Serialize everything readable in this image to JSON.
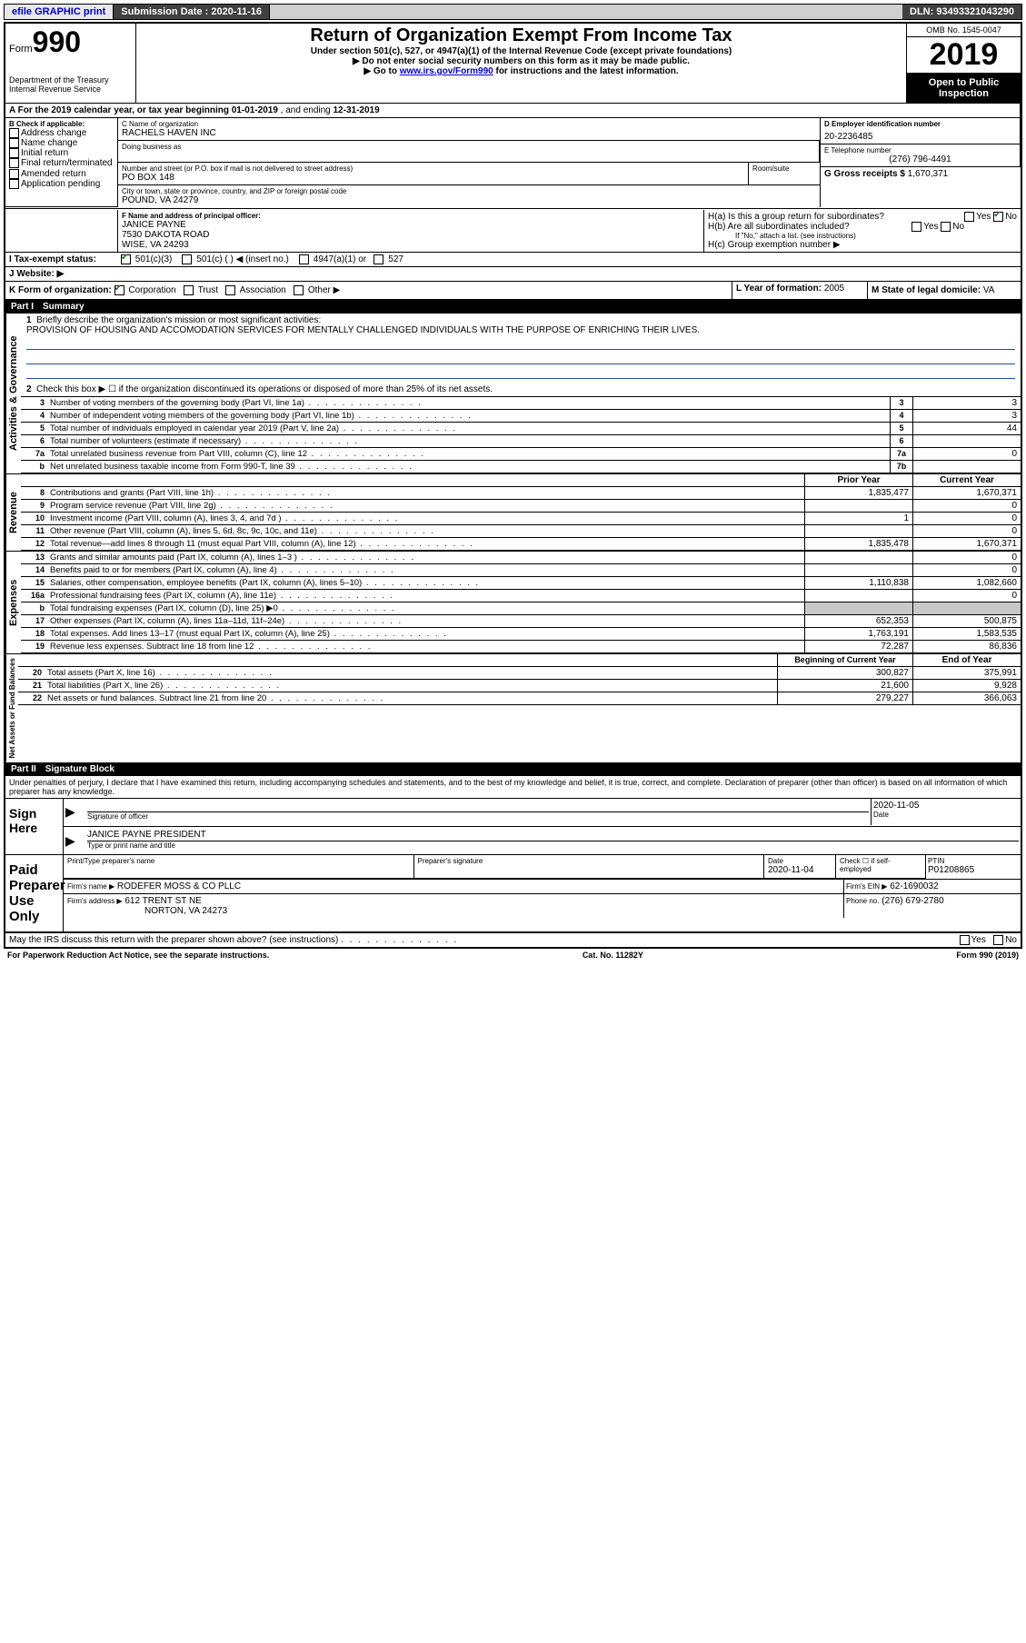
{
  "topbar": {
    "efile": "efile GRAPHIC print",
    "sub_label": "Submission Date :",
    "sub_date": "2020-11-16",
    "dln_label": "DLN:",
    "dln": "93493321043290"
  },
  "header": {
    "form_word": "Form",
    "form_num": "990",
    "dept": "Department of the Treasury\nInternal Revenue Service",
    "title": "Return of Organization Exempt From Income Tax",
    "sub1": "Under section 501(c), 527, or 4947(a)(1) of the Internal Revenue Code (except private foundations)",
    "sub2": "▶ Do not enter social security numbers on this form as it may be made public.",
    "sub3_pre": "▶ Go to ",
    "sub3_link": "www.irs.gov/Form990",
    "sub3_post": " for instructions and the latest information.",
    "omb": "OMB No. 1545-0047",
    "year": "2019",
    "open": "Open to Public Inspection"
  },
  "A": {
    "text": "A For the 2019 calendar year, or tax year beginning ",
    "begin": "01-01-2019",
    "mid": " , and ending ",
    "end": "12-31-2019"
  },
  "B": {
    "label": "B Check if applicable:",
    "opts": [
      "Address change",
      "Name change",
      "Initial return",
      "Final return/terminated",
      "Amended return",
      "Application pending"
    ]
  },
  "C": {
    "name_label": "C Name of organization",
    "name": "RACHELS HAVEN INC",
    "dba_label": "Doing business as",
    "addr_label": "Number and street (or P.O. box if mail is not delivered to street address)",
    "room_label": "Room/suite",
    "addr": "PO BOX 148",
    "city_label": "City or town, state or province, country, and ZIP or foreign postal code",
    "city": "POUND, VA  24279"
  },
  "D": {
    "label": "D Employer identification number",
    "val": "20-2236485"
  },
  "E": {
    "label": "E Telephone number",
    "val": "(276) 796-4491"
  },
  "G": {
    "label": "G Gross receipts $",
    "val": "1,670,371"
  },
  "F": {
    "label": "F Name and address of principal officer:",
    "name": "JANICE PAYNE",
    "addr1": "7530 DAKOTA ROAD",
    "addr2": "WISE, VA  24293"
  },
  "H": {
    "a": "H(a)  Is this a group return for subordinates?",
    "b": "H(b)  Are all subordinates included?",
    "b_note": "If \"No,\" attach a list. (see instructions)",
    "c": "H(c)  Group exemption number ▶",
    "yes": "Yes",
    "no": "No"
  },
  "I": {
    "label": "I   Tax-exempt status:",
    "opts": [
      "501(c)(3)",
      "501(c) (  ) ◀ (insert no.)",
      "4947(a)(1) or",
      "527"
    ]
  },
  "J": {
    "label": "J   Website: ▶"
  },
  "K": {
    "label": "K Form of organization:",
    "opts": [
      "Corporation",
      "Trust",
      "Association",
      "Other ▶"
    ]
  },
  "L": {
    "label": "L Year of formation:",
    "val": "2005"
  },
  "M": {
    "label": "M State of legal domicile:",
    "val": "VA"
  },
  "part1": {
    "bar_part": "Part I",
    "bar_title": "Summary",
    "l1": "Briefly describe the organization's mission or most significant activities:",
    "mission": "PROVISION OF HOUSING AND ACCOMODATION SERVICES FOR MENTALLY CHALLENGED INDIVIDUALS WITH THE PURPOSE OF ENRICHING THEIR LIVES.",
    "l2": "Check this box ▶ ☐  if the organization discontinued its operations or disposed of more than 25% of its net assets.",
    "lines_gov": [
      {
        "n": "3",
        "d": "Number of voting members of the governing body (Part VI, line 1a)",
        "b": "3",
        "v": "3"
      },
      {
        "n": "4",
        "d": "Number of independent voting members of the governing body (Part VI, line 1b)",
        "b": "4",
        "v": "3"
      },
      {
        "n": "5",
        "d": "Total number of individuals employed in calendar year 2019 (Part V, line 2a)",
        "b": "5",
        "v": "44"
      },
      {
        "n": "6",
        "d": "Total number of volunteers (estimate if necessary)",
        "b": "6",
        "v": ""
      },
      {
        "n": "7a",
        "d": "Total unrelated business revenue from Part VIII, column (C), line 12",
        "b": "7a",
        "v": "0"
      },
      {
        "n": "b",
        "d": "Net unrelated business taxable income from Form 990-T, line 39",
        "b": "7b",
        "v": ""
      }
    ],
    "col_prior": "Prior Year",
    "col_curr": "Current Year",
    "lines_rev": [
      {
        "n": "8",
        "d": "Contributions and grants (Part VIII, line 1h)",
        "p": "1,835,477",
        "c": "1,670,371"
      },
      {
        "n": "9",
        "d": "Program service revenue (Part VIII, line 2g)",
        "p": "",
        "c": "0"
      },
      {
        "n": "10",
        "d": "Investment income (Part VIII, column (A), lines 3, 4, and 7d )",
        "p": "1",
        "c": "0"
      },
      {
        "n": "11",
        "d": "Other revenue (Part VIII, column (A), lines 5, 6d, 8c, 9c, 10c, and 11e)",
        "p": "",
        "c": "0"
      },
      {
        "n": "12",
        "d": "Total revenue—add lines 8 through 11 (must equal Part VIII, column (A), line 12)",
        "p": "1,835,478",
        "c": "1,670,371"
      }
    ],
    "lines_exp": [
      {
        "n": "13",
        "d": "Grants and similar amounts paid (Part IX, column (A), lines 1–3 )",
        "p": "",
        "c": "0"
      },
      {
        "n": "14",
        "d": "Benefits paid to or for members (Part IX, column (A), line 4)",
        "p": "",
        "c": "0"
      },
      {
        "n": "15",
        "d": "Salaries, other compensation, employee benefits (Part IX, column (A), lines 5–10)",
        "p": "1,110,838",
        "c": "1,082,660"
      },
      {
        "n": "16a",
        "d": "Professional fundraising fees (Part IX, column (A), line 11e)",
        "p": "",
        "c": "0"
      },
      {
        "n": "b",
        "d": "Total fundraising expenses (Part IX, column (D), line 25) ▶0",
        "p": "__SHADE__",
        "c": "__SHADE__"
      },
      {
        "n": "17",
        "d": "Other expenses (Part IX, column (A), lines 11a–11d, 11f–24e)",
        "p": "652,353",
        "c": "500,875"
      },
      {
        "n": "18",
        "d": "Total expenses. Add lines 13–17 (must equal Part IX, column (A), line 25)",
        "p": "1,763,191",
        "c": "1,583,535"
      },
      {
        "n": "19",
        "d": "Revenue less expenses. Subtract line 18 from line 12",
        "p": "72,287",
        "c": "86,836"
      }
    ],
    "col_begin": "Beginning of Current Year",
    "col_end": "End of Year",
    "lines_net": [
      {
        "n": "20",
        "d": "Total assets (Part X, line 16)",
        "p": "300,827",
        "c": "375,991"
      },
      {
        "n": "21",
        "d": "Total liabilities (Part X, line 26)",
        "p": "21,600",
        "c": "9,928"
      },
      {
        "n": "22",
        "d": "Net assets or fund balances. Subtract line 21 from line 20",
        "p": "279,227",
        "c": "366,063"
      }
    ],
    "vert_gov": "Activities & Governance",
    "vert_rev": "Revenue",
    "vert_exp": "Expenses",
    "vert_net": "Net Assets or Fund Balances"
  },
  "part2": {
    "bar_part": "Part II",
    "bar_title": "Signature Block",
    "decl": "Under penalties of perjury, I declare that I have examined this return, including accompanying schedules and statements, and to the best of my knowledge and belief, it is true, correct, and complete. Declaration of preparer (other than officer) is based on all information of which preparer has any knowledge.",
    "sign_here": "Sign Here",
    "sig_officer": "Signature of officer",
    "date_label": "Date",
    "sig_date": "2020-11-05",
    "officer_name": "JANICE PAYNE  PRESIDENT",
    "type_name": "Type or print name and title",
    "paid": "Paid Preparer Use Only",
    "prep_name_label": "Print/Type preparer's name",
    "prep_sig_label": "Preparer's signature",
    "prep_date_label": "Date",
    "prep_date": "2020-11-04",
    "check_self": "Check ☐ if self-employed",
    "ptin_label": "PTIN",
    "ptin": "P01208865",
    "firm_name_label": "Firm's name      ▶",
    "firm_name": "RODEFER MOSS & CO PLLC",
    "firm_ein_label": "Firm's EIN ▶",
    "firm_ein": "62-1690032",
    "firm_addr_label": "Firm's address ▶",
    "firm_addr1": "612 TRENT ST NE",
    "firm_addr2": "NORTON, VA  24273",
    "phone_label": "Phone no.",
    "phone": "(276) 679-2780",
    "discuss": "May the IRS discuss this return with the preparer shown above? (see instructions)"
  },
  "footer": {
    "left": "For Paperwork Reduction Act Notice, see the separate instructions.",
    "mid": "Cat. No. 11282Y",
    "right": "Form 990 (2019)"
  }
}
